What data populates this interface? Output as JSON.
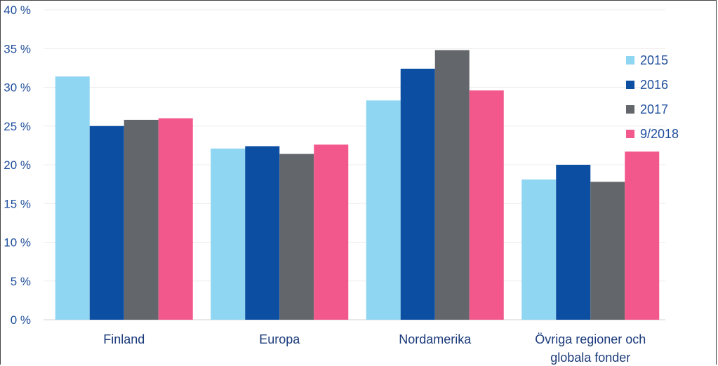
{
  "chart_data": {
    "type": "bar",
    "categories": [
      "Finland",
      "Europa",
      "Nordamerika",
      "Övriga regioner och globala fonder"
    ],
    "category_lines": [
      [
        "Finland"
      ],
      [
        "Europa"
      ],
      [
        "Nordamerika"
      ],
      [
        "Övriga regioner och",
        "globala fonder"
      ]
    ],
    "series": [
      {
        "name": "2015",
        "color": "#8fd6f2",
        "values": [
          31.4,
          22.1,
          28.3,
          18.1
        ]
      },
      {
        "name": "2016",
        "color": "#0b4ea2",
        "values": [
          25.0,
          22.4,
          32.4,
          20.0
        ]
      },
      {
        "name": "2017",
        "color": "#63676b",
        "values": [
          25.8,
          21.4,
          34.8,
          17.8
        ]
      },
      {
        "name": "9/2018",
        "color": "#f2588c",
        "values": [
          26.0,
          22.6,
          29.6,
          21.7
        ]
      }
    ],
    "yticks": [
      "0 %",
      "5 %",
      "10 %",
      "15 %",
      "20 %",
      "25 %",
      "30 %",
      "35 %",
      "40 %"
    ],
    "ylim": [
      0,
      40
    ],
    "ytick_step": 5,
    "grid": true,
    "legend_position": "right",
    "tick_color": "#1f4e9c",
    "text_color": "#1f4e9c"
  }
}
